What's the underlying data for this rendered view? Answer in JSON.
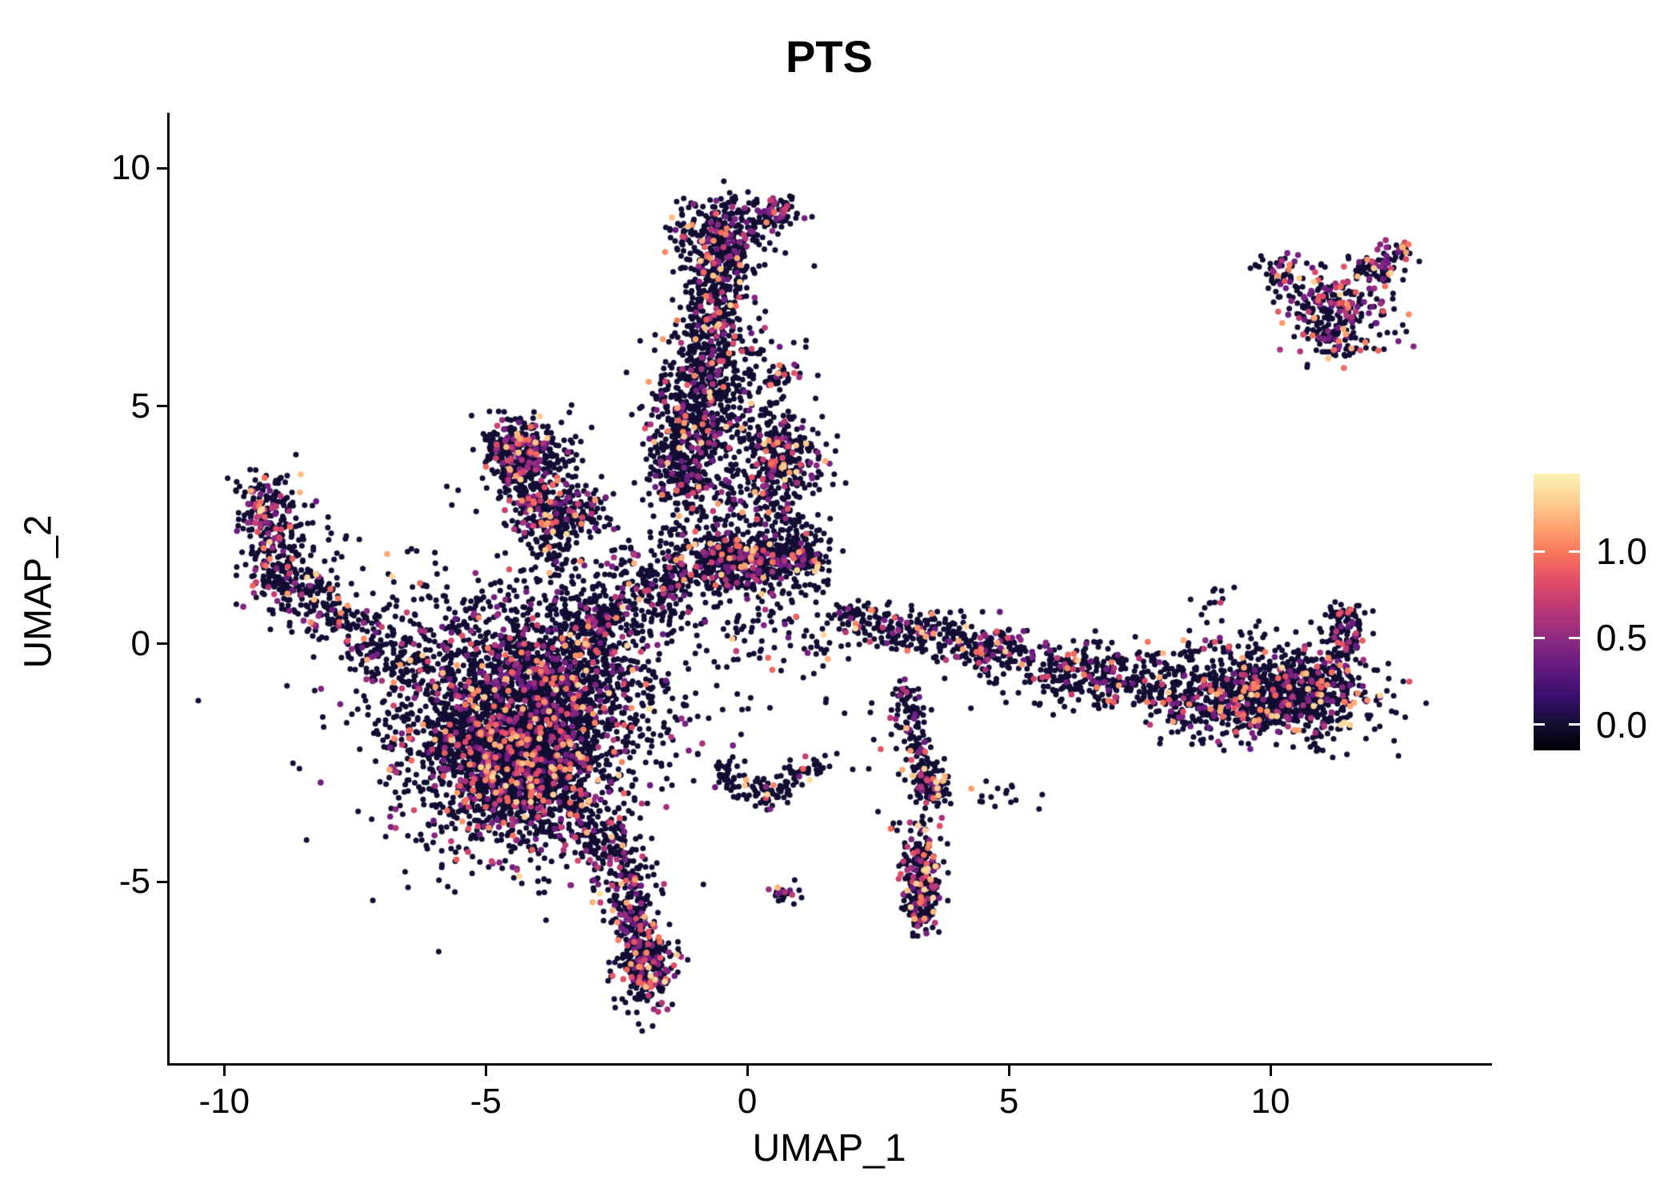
{
  "title": "PTS",
  "axes": {
    "x_label": "UMAP_1",
    "y_label": "UMAP_2",
    "x_tick_labels": [
      "-10",
      "-5",
      "0",
      "5",
      "10"
    ],
    "x_tick_values": [
      -10,
      -5,
      0,
      5,
      10
    ],
    "y_tick_labels": [
      "10",
      "5",
      "0",
      "-5"
    ],
    "y_tick_values": [
      10,
      5,
      0,
      -5
    ]
  },
  "legend": {
    "labels": [
      "1.0",
      "0.5",
      "0.0"
    ],
    "tick_values": [
      1.0,
      0.5,
      0.0
    ],
    "vmin": -0.15,
    "vmax": 1.45
  },
  "colors": {
    "background": "#ffffff",
    "axis": "#000000",
    "text": "#000000",
    "zero_point": "#0b0722",
    "mid_point": "#b73779",
    "high_point": "#fd9567"
  },
  "chart_data": {
    "type": "scatter",
    "title": "PTS",
    "xlabel": "UMAP_1",
    "ylabel": "UMAP_2",
    "xlim": [
      -11.06,
      14.19
    ],
    "ylim": [
      -8.81,
      11.13
    ],
    "grid": false,
    "legend_position": "right",
    "color_scale_name": "magma",
    "point_radius_px": 3.5,
    "expr_value_min": 0.35,
    "expr_value_max": 1.35,
    "colormap": [
      {
        "t": 0.0,
        "c": "#000004"
      },
      {
        "t": 0.1,
        "c": "#140e36"
      },
      {
        "t": 0.2,
        "c": "#3b0f70"
      },
      {
        "t": 0.3,
        "c": "#641a80"
      },
      {
        "t": 0.4,
        "c": "#8c2981"
      },
      {
        "t": 0.5,
        "c": "#b73779"
      },
      {
        "t": 0.6,
        "c": "#de4968"
      },
      {
        "t": 0.7,
        "c": "#f7705c"
      },
      {
        "t": 0.8,
        "c": "#fe9f6d"
      },
      {
        "t": 0.9,
        "c": "#fecf92"
      },
      {
        "t": 1.0,
        "c": "#fcf4b6"
      }
    ],
    "clusters": [
      {
        "name": "main-blob-core",
        "kind": "gauss",
        "cx": -4.4,
        "cy": -1.9,
        "sx": 1.05,
        "sy": 1.15,
        "n": 2400,
        "p_expr": 0.17
      },
      {
        "name": "main-blob-lower",
        "kind": "gauss",
        "cx": -4.2,
        "cy": -2.6,
        "sx": 0.75,
        "sy": 0.8,
        "n": 700,
        "p_expr": 0.17
      },
      {
        "name": "main-blob-halo",
        "kind": "gauss",
        "cx": -4.6,
        "cy": -1.2,
        "sx": 1.5,
        "sy": 1.5,
        "n": 500,
        "p_expr": 0.12
      },
      {
        "name": "main-blob-upper-lobe",
        "kind": "gauss",
        "cx": -3.3,
        "cy": -0.6,
        "sx": 0.8,
        "sy": 0.7,
        "n": 350,
        "p_expr": 0.15
      },
      {
        "name": "tail-upper",
        "kind": "segment",
        "x1": -3.0,
        "y1": -3.6,
        "x2": -2.2,
        "y2": -5.4,
        "w": 0.28,
        "n": 220,
        "p_expr": 0.2
      },
      {
        "name": "tail-lower",
        "kind": "segment",
        "x1": -2.2,
        "y1": -5.4,
        "x2": -1.85,
        "y2": -7.2,
        "w": 0.22,
        "n": 260,
        "p_expr": 0.2
      },
      {
        "name": "tail-tip-blob",
        "kind": "gauss",
        "cx": -1.95,
        "cy": -6.9,
        "sx": 0.28,
        "sy": 0.45,
        "n": 160,
        "p_expr": 0.22
      },
      {
        "name": "stream-to-center-1",
        "kind": "segment",
        "x1": -3.4,
        "y1": 0.0,
        "x2": -1.6,
        "y2": 1.4,
        "w": 0.5,
        "n": 320,
        "p_expr": 0.15
      },
      {
        "name": "stream-to-center-2",
        "kind": "segment",
        "x1": -1.8,
        "y1": 1.2,
        "x2": -0.6,
        "y2": 2.1,
        "w": 0.45,
        "n": 220,
        "p_expr": 0.15
      },
      {
        "name": "column-lower",
        "kind": "segment",
        "x1": -1.25,
        "y1": 3.1,
        "x2": -0.95,
        "y2": 5.2,
        "w": 0.42,
        "n": 500,
        "p_expr": 0.16
      },
      {
        "name": "column-mid",
        "kind": "segment",
        "x1": -0.95,
        "y1": 5.2,
        "x2": -0.75,
        "y2": 6.6,
        "w": 0.38,
        "n": 260,
        "p_expr": 0.16
      },
      {
        "name": "column-upper",
        "kind": "segment",
        "x1": -0.75,
        "y1": 6.6,
        "x2": -0.55,
        "y2": 8.3,
        "w": 0.34,
        "n": 300,
        "p_expr": 0.16
      },
      {
        "name": "column-top-blob",
        "kind": "gauss",
        "cx": -0.5,
        "cy": 8.7,
        "sx": 0.45,
        "sy": 0.35,
        "n": 260,
        "p_expr": 0.18
      },
      {
        "name": "top-nub",
        "kind": "gauss",
        "cx": 0.55,
        "cy": 9.05,
        "sx": 0.22,
        "sy": 0.18,
        "n": 70,
        "p_expr": 0.2
      },
      {
        "name": "column-right-sparse",
        "kind": "gauss",
        "cx": -0.3,
        "cy": 4.6,
        "sx": 0.65,
        "sy": 0.9,
        "n": 140,
        "p_expr": 0.12
      },
      {
        "name": "column-right-sparse-2",
        "kind": "gauss",
        "cx": 0.1,
        "cy": 6.1,
        "sx": 0.5,
        "sy": 0.6,
        "n": 60,
        "p_expr": 0.1
      },
      {
        "name": "funnel-left-edge",
        "kind": "segment",
        "x1": -4.75,
        "y1": 4.35,
        "x2": -3.6,
        "y2": 1.5,
        "w": 0.2,
        "n": 240,
        "p_expr": 0.2
      },
      {
        "name": "funnel-right-edge",
        "kind": "segment",
        "x1": -4.35,
        "y1": 4.45,
        "x2": -3.35,
        "y2": 2.3,
        "w": 0.25,
        "n": 180,
        "p_expr": 0.2
      },
      {
        "name": "funnel-top-blob",
        "kind": "gauss",
        "cx": -4.45,
        "cy": 4.25,
        "sx": 0.35,
        "sy": 0.28,
        "n": 160,
        "p_expr": 0.25
      },
      {
        "name": "funnel-fill",
        "kind": "gauss",
        "cx": -3.9,
        "cy": 3.3,
        "sx": 0.45,
        "sy": 0.8,
        "n": 110,
        "p_expr": 0.15
      },
      {
        "name": "funnel-right-wing",
        "kind": "segment",
        "x1": -3.45,
        "y1": 2.4,
        "x2": -2.9,
        "y2": 3.1,
        "w": 0.3,
        "n": 90,
        "p_expr": 0.12
      },
      {
        "name": "left-arm-top-blob",
        "kind": "gauss",
        "cx": -9.2,
        "cy": 2.8,
        "sx": 0.28,
        "sy": 0.45,
        "n": 170,
        "p_expr": 0.22
      },
      {
        "name": "left-arm-upper",
        "kind": "segment",
        "x1": -9.35,
        "y1": 1.6,
        "x2": -8.3,
        "y2": 1.0,
        "w": 0.3,
        "n": 150,
        "p_expr": 0.2
      },
      {
        "name": "left-arm-lower",
        "kind": "segment",
        "x1": -8.3,
        "y1": 1.0,
        "x2": -7.0,
        "y2": -0.2,
        "w": 0.32,
        "n": 150,
        "p_expr": 0.18
      },
      {
        "name": "left-arm-halo",
        "kind": "gauss",
        "cx": -8.8,
        "cy": 2.0,
        "sx": 0.5,
        "sy": 0.6,
        "n": 90,
        "p_expr": 0.15
      },
      {
        "name": "left-arm-connector",
        "kind": "segment",
        "x1": -7.0,
        "y1": -0.2,
        "x2": -6.2,
        "y2": -0.6,
        "w": 0.3,
        "n": 70,
        "p_expr": 0.12
      },
      {
        "name": "center-band",
        "kind": "segment",
        "x1": -0.75,
        "y1": 1.55,
        "x2": 1.35,
        "y2": 1.95,
        "w": 0.3,
        "n": 480,
        "p_expr": 0.2
      },
      {
        "name": "center-upper-blob",
        "kind": "gauss",
        "cx": 0.6,
        "cy": 3.9,
        "sx": 0.42,
        "sy": 0.55,
        "n": 300,
        "p_expr": 0.2
      },
      {
        "name": "center-mid-scatter",
        "kind": "gauss",
        "cx": -0.1,
        "cy": 2.7,
        "sx": 0.75,
        "sy": 0.55,
        "n": 160,
        "p_expr": 0.12
      },
      {
        "name": "small-blob-5-6",
        "kind": "gauss",
        "cx": 0.65,
        "cy": 5.6,
        "sx": 0.16,
        "sy": 0.14,
        "n": 28,
        "p_expr": 0.25
      },
      {
        "name": "center-below-band",
        "kind": "gauss",
        "cx": 0.1,
        "cy": 0.6,
        "sx": 0.9,
        "sy": 0.55,
        "n": 110,
        "p_expr": 0.1
      },
      {
        "name": "sparse-center-left",
        "kind": "gauss",
        "cx": -1.6,
        "cy": -1.3,
        "sx": 1.1,
        "sy": 0.9,
        "n": 70,
        "p_expr": 0.08
      },
      {
        "name": "sparse-above-main",
        "kind": "gauss",
        "cx": -5.6,
        "cy": 0.6,
        "sx": 1.3,
        "sy": 0.5,
        "n": 90,
        "p_expr": 0.1
      },
      {
        "name": "bottom-arc-left",
        "kind": "segment",
        "x1": -0.6,
        "y1": -2.65,
        "x2": 0.3,
        "y2": -3.25,
        "w": 0.16,
        "n": 60,
        "p_expr": 0.12
      },
      {
        "name": "bottom-arc-right",
        "kind": "segment",
        "x1": 0.3,
        "y1": -3.25,
        "x2": 1.05,
        "y2": -2.65,
        "w": 0.16,
        "n": 55,
        "p_expr": 0.12
      },
      {
        "name": "bottom-arc-end",
        "kind": "gauss",
        "cx": 1.3,
        "cy": -2.6,
        "sx": 0.18,
        "sy": 0.12,
        "n": 18,
        "p_expr": 0.1
      },
      {
        "name": "small-pair-blob",
        "kind": "gauss",
        "cx": 0.7,
        "cy": -5.25,
        "sx": 0.13,
        "sy": 0.11,
        "n": 26,
        "p_expr": 0.3
      },
      {
        "name": "chain-upper",
        "kind": "segment",
        "x1": 2.95,
        "y1": -0.8,
        "x2": 3.3,
        "y2": -2.3,
        "w": 0.16,
        "n": 90,
        "p_expr": 0.15
      },
      {
        "name": "chain-lower",
        "kind": "segment",
        "x1": 3.3,
        "y1": -2.45,
        "x2": 3.6,
        "y2": -3.25,
        "w": 0.15,
        "n": 80,
        "p_expr": 0.18
      },
      {
        "name": "chain-knot",
        "kind": "gauss",
        "cx": 3.55,
        "cy": -3.1,
        "sx": 0.16,
        "sy": 0.18,
        "n": 50,
        "p_expr": 0.2
      },
      {
        "name": "stragglers-right-of-chain",
        "kind": "gauss",
        "cx": 4.85,
        "cy": -3.25,
        "sx": 0.3,
        "sy": 0.2,
        "n": 16,
        "p_expr": 0.15
      },
      {
        "name": "sparse-bottom-mid",
        "kind": "gauss",
        "cx": 2.5,
        "cy": -2.0,
        "sx": 0.7,
        "sy": 0.8,
        "n": 22,
        "p_expr": 0.05
      },
      {
        "name": "teardrop",
        "kind": "gauss",
        "cx": 3.35,
        "cy": -4.9,
        "sx": 0.2,
        "sy": 0.55,
        "n": 230,
        "p_expr": 0.25
      },
      {
        "name": "teardrop-core",
        "kind": "gauss",
        "cx": 3.3,
        "cy": -5.5,
        "sx": 0.16,
        "sy": 0.25,
        "n": 80,
        "p_expr": 0.25
      },
      {
        "name": "right-stream-start",
        "kind": "gauss",
        "cx": 1.95,
        "cy": 0.6,
        "sx": 0.18,
        "sy": 0.14,
        "n": 45,
        "p_expr": 0.2
      },
      {
        "name": "right-stream-1",
        "kind": "segment",
        "x1": 2.25,
        "y1": 0.5,
        "x2": 3.5,
        "y2": 0.2,
        "w": 0.22,
        "n": 130,
        "p_expr": 0.18
      },
      {
        "name": "right-stream-2",
        "kind": "segment",
        "x1": 3.5,
        "y1": 0.2,
        "x2": 5.0,
        "y2": -0.15,
        "w": 0.28,
        "n": 150,
        "p_expr": 0.18
      },
      {
        "name": "right-stream-knot",
        "kind": "gauss",
        "cx": 4.85,
        "cy": -0.2,
        "sx": 0.35,
        "sy": 0.25,
        "n": 90,
        "p_expr": 0.2
      },
      {
        "name": "right-band-sparse",
        "kind": "segment",
        "x1": 5.5,
        "y1": -0.45,
        "x2": 8.0,
        "y2": -0.95,
        "w": 0.35,
        "n": 240,
        "p_expr": 0.15
      },
      {
        "name": "right-band-halo",
        "kind": "gauss",
        "cx": 6.9,
        "cy": -0.55,
        "sx": 1.0,
        "sy": 0.35,
        "n": 120,
        "p_expr": 0.12
      },
      {
        "name": "right-band-dense",
        "kind": "segment",
        "x1": 8.0,
        "y1": -1.25,
        "x2": 11.35,
        "y2": -0.95,
        "w": 0.42,
        "n": 650,
        "p_expr": 0.18
      },
      {
        "name": "right-band-core",
        "kind": "gauss",
        "cx": 10.4,
        "cy": -1.15,
        "sx": 0.85,
        "sy": 0.4,
        "n": 420,
        "p_expr": 0.18
      },
      {
        "name": "right-tip-rise",
        "kind": "segment",
        "x1": 11.25,
        "y1": -0.7,
        "x2": 11.45,
        "y2": 0.8,
        "w": 0.22,
        "n": 140,
        "p_expr": 0.2
      },
      {
        "name": "right-band-above",
        "kind": "gauss",
        "cx": 9.6,
        "cy": -0.15,
        "sx": 0.8,
        "sy": 0.3,
        "n": 60,
        "p_expr": 0.12
      },
      {
        "name": "stray-right-high",
        "kind": "gauss",
        "cx": 8.9,
        "cy": 1.0,
        "sx": 0.3,
        "sy": 0.2,
        "n": 12,
        "p_expr": 0.1
      },
      {
        "name": "stray-center-low",
        "kind": "gauss",
        "cx": 1.6,
        "cy": -0.1,
        "sx": 0.25,
        "sy": 0.15,
        "n": 14,
        "p_expr": 0.1
      },
      {
        "name": "topright-core",
        "kind": "gauss",
        "cx": 11.25,
        "cy": 7.0,
        "sx": 0.55,
        "sy": 0.5,
        "n": 280,
        "p_expr": 0.28
      },
      {
        "name": "topright-arm",
        "kind": "segment",
        "x1": 11.8,
        "y1": 7.7,
        "x2": 12.5,
        "y2": 8.3,
        "w": 0.18,
        "n": 70,
        "p_expr": 0.28
      },
      {
        "name": "topright-left-tip",
        "kind": "gauss",
        "cx": 10.15,
        "cy": 7.85,
        "sx": 0.25,
        "sy": 0.18,
        "n": 45,
        "p_expr": 0.25
      },
      {
        "name": "topright-bottom-tip",
        "kind": "gauss",
        "cx": 11.3,
        "cy": 6.25,
        "sx": 0.2,
        "sy": 0.18,
        "n": 35,
        "p_expr": 0.2
      },
      {
        "name": "topright-pair",
        "kind": "gauss",
        "cx": 12.5,
        "cy": 8.35,
        "sx": 0.1,
        "sy": 0.08,
        "n": 12,
        "p_expr": 0.3
      }
    ]
  }
}
